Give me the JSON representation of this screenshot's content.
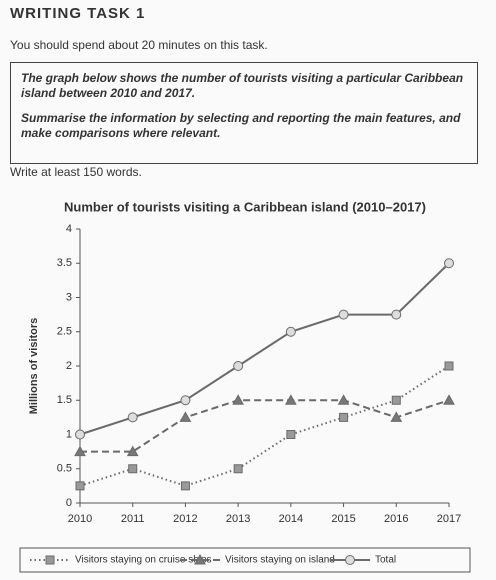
{
  "header": {
    "title": "WRITING TASK 1",
    "instruction": "You should spend about 20 minutes on this task."
  },
  "task_box": {
    "paragraphs": [
      "The graph below shows the number of tourists visiting a particular Caribbean island between 2010 and 2017.",
      "Summarise the information by selecting and reporting the main features, and make comparisons where relevant."
    ]
  },
  "word_count": "Write at least 150 words.",
  "chart_data": {
    "type": "line",
    "title": "Number of tourists visiting a Caribbean island (2010–2017)",
    "y_label": "Millions of visitors",
    "categories": [
      "2010",
      "2011",
      "2012",
      "2013",
      "2014",
      "2015",
      "2016",
      "2017"
    ],
    "ylim": [
      0,
      4
    ],
    "yticks": [
      0,
      0.5,
      1,
      1.5,
      2,
      2.5,
      3,
      3.5,
      4
    ],
    "grid": false,
    "legend": "bottom",
    "series": [
      {
        "name": "Visitors staying on cruise ships",
        "color": "#6a6a6a",
        "dash": "dotted",
        "marker": "square",
        "values": [
          0.25,
          0.5,
          0.25,
          0.5,
          1,
          1.25,
          1.5,
          2
        ]
      },
      {
        "name": "Visitors staying on island",
        "color": "#6a6a6a",
        "dash": "dashed",
        "marker": "triangle",
        "values": [
          0.75,
          0.75,
          1.25,
          1.5,
          1.5,
          1.5,
          1.25,
          1.5
        ]
      },
      {
        "name": "Total",
        "color": "#6a6a6a",
        "dash": "solid",
        "marker": "circle",
        "values": [
          1,
          1.25,
          1.5,
          2,
          2.5,
          2.75,
          2.75,
          3.5
        ]
      }
    ]
  }
}
